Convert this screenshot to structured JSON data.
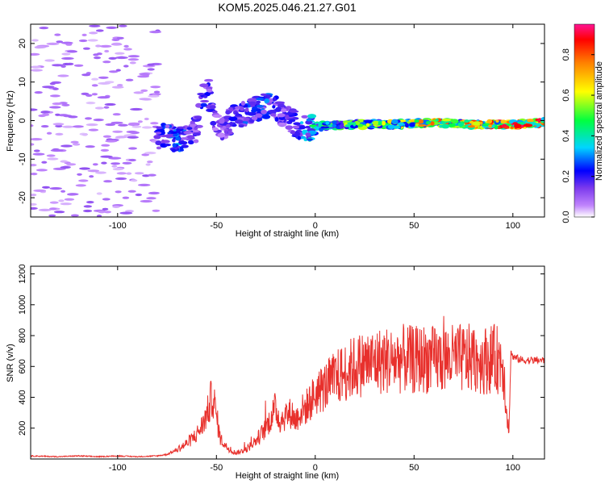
{
  "title": "KOM5.2025.046.21.27.G01",
  "colors": {
    "snr_line": "#e8302c",
    "background": "#ffffff",
    "axes": "#000000"
  },
  "chart_data": [
    {
      "type": "heatmap",
      "xlabel": "Height of straight line (km)",
      "ylabel": "Frequency (Hz)",
      "xlim": [
        -144,
        116
      ],
      "ylim": [
        -25,
        25
      ],
      "xticks": [
        -100,
        -50,
        0,
        50,
        100
      ],
      "xtick_labels": [
        "-100",
        "-50",
        "0",
        "50",
        "100"
      ],
      "yticks": [
        -20,
        -10,
        0,
        10,
        20
      ],
      "ytick_labels": [
        "-20",
        "-10",
        "0",
        "10",
        "20"
      ],
      "colorbar": {
        "label": "Normalized spectral amplitude",
        "range": [
          0,
          0.95
        ],
        "ticks": [
          0,
          0.2,
          0.4,
          0.6,
          0.8
        ],
        "tick_labels": [
          "0.0",
          "0.2",
          "0.4",
          "0.6",
          "0.8"
        ],
        "colormap": [
          "#ffffff",
          "#c084fc",
          "#7c3aed",
          "#0000ff",
          "#00d5ff",
          "#00ff40",
          "#ffff00",
          "#ff8000",
          "#ff0000",
          "#ff1493"
        ]
      },
      "ridge": {
        "x": [
          -75,
          -70,
          -65,
          -60,
          -57,
          -54,
          -50,
          -45,
          -40,
          -35,
          -30,
          -25,
          -20,
          -15,
          -10,
          -5,
          0,
          20,
          40,
          60,
          80,
          100,
          116
        ],
        "y": [
          -4,
          -5,
          -4,
          -2,
          6,
          8,
          -2,
          -1,
          1,
          2,
          3,
          4,
          3,
          1,
          -1,
          -2,
          -1.5,
          -1,
          -1,
          -0.5,
          -1,
          -1,
          -0.5
        ],
        "amplitude": [
          0.3,
          0.4,
          0.3,
          0.25,
          0.35,
          0.3,
          0.2,
          0.25,
          0.3,
          0.35,
          0.3,
          0.35,
          0.3,
          0.25,
          0.3,
          0.4,
          0.5,
          0.55,
          0.6,
          0.7,
          0.75,
          0.8,
          0.85
        ]
      }
    },
    {
      "type": "line",
      "xlabel": "Height of straight line (km)",
      "ylabel": "SNR (v/v)",
      "xlim": [
        -144,
        116
      ],
      "ylim": [
        0,
        1250
      ],
      "xticks": [
        -100,
        -50,
        0,
        50,
        100
      ],
      "xtick_labels": [
        "-100",
        "-50",
        "0",
        "50",
        "100"
      ],
      "yticks": [
        200,
        400,
        600,
        800,
        1000,
        1200
      ],
      "ytick_labels": [
        "200",
        "400",
        "600",
        "800",
        "1000",
        "1200"
      ],
      "series": [
        {
          "x": [
            -144,
            -130,
            -120,
            -110,
            -100,
            -90,
            -80,
            -75,
            -70,
            -65,
            -60,
            -57,
            -54,
            -52,
            -50,
            -48,
            -45,
            -42,
            -40,
            -35,
            -30,
            -25,
            -22,
            -20,
            -18,
            -15,
            -12,
            -10,
            -8,
            -5,
            -2,
            0,
            5,
            10,
            15,
            20,
            25,
            30,
            35,
            40,
            45,
            50,
            55,
            60,
            65,
            70,
            75,
            80,
            85,
            90,
            95,
            97,
            98,
            99,
            100,
            105,
            110,
            116
          ],
          "values": [
            20,
            15,
            20,
            15,
            20,
            15,
            20,
            30,
            60,
            100,
            160,
            220,
            320,
            420,
            280,
            130,
            80,
            50,
            40,
            60,
            120,
            200,
            280,
            330,
            250,
            280,
            300,
            250,
            300,
            330,
            380,
            420,
            470,
            520,
            560,
            600,
            620,
            630,
            640,
            640,
            650,
            640,
            650,
            640,
            650,
            650,
            650,
            650,
            640,
            650,
            640,
            300,
            160,
            700,
            660,
            640,
            640,
            640
          ]
        }
      ]
    }
  ]
}
